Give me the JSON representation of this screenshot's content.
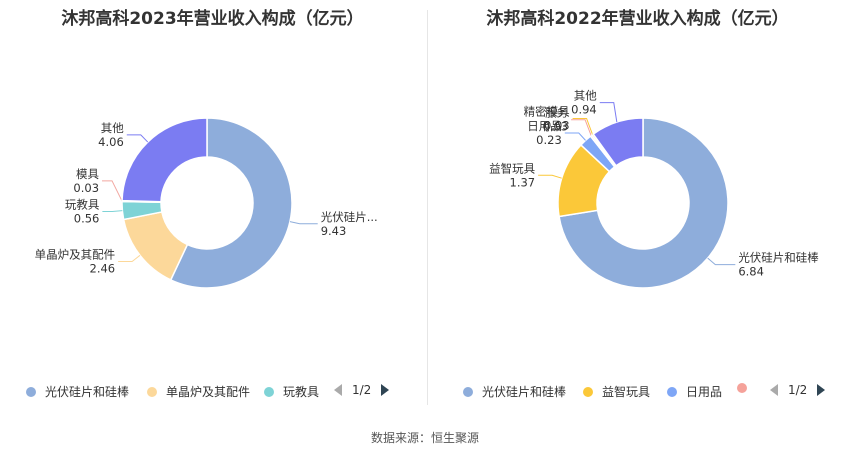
{
  "charts": [
    {
      "title": "沐邦高科2023年营业收入构成（亿元）",
      "pager": "1/2",
      "legend": [
        "光伏硅片和硅棒",
        "单晶炉及其配件",
        "玩教具"
      ]
    },
    {
      "title": "沐邦高科2022年营业收入构成（亿元）",
      "pager": "1/2",
      "legend": [
        "光伏硅片和硅棒",
        "益智玩具",
        "日用品",
        ""
      ]
    }
  ],
  "source": "数据来源：恒生聚源",
  "colors": {
    "光伏硅片和硅棒": "#8eaddb",
    "单晶炉及其配件": "#fcd89a",
    "玩教具": "#7ed3d6",
    "模具": "#f2a6a0",
    "其他": "#7b7cf2",
    "益智玩具": "#fbc839",
    "日用品": "#7ea6f6",
    "服务": "#f5a29a",
    "精密模具": "#fbc839"
  },
  "chart_data": [
    {
      "type": "pie",
      "title": "沐邦高科2023年营业收入构成（亿元）",
      "slices": [
        {
          "label": "光伏硅片...",
          "name": "光伏硅片和硅棒",
          "value": 9.43
        },
        {
          "label": "单晶炉及其配件",
          "name": "单晶炉及其配件",
          "value": 2.46
        },
        {
          "label": "玩教具",
          "name": "玩教具",
          "value": 0.56
        },
        {
          "label": "模具",
          "name": "模具",
          "value": 0.03
        },
        {
          "label": "其他",
          "name": "其他",
          "value": 4.06
        }
      ]
    },
    {
      "type": "pie",
      "title": "沐邦高科2022年营业收入构成（亿元）",
      "slices": [
        {
          "label": "光伏硅片和硅棒",
          "name": "光伏硅片和硅棒",
          "value": 6.84
        },
        {
          "label": "益智玩具",
          "name": "益智玩具",
          "value": 1.37
        },
        {
          "label": "日用品",
          "name": "日用品",
          "value": 0.23
        },
        {
          "label": "服务",
          "name": "服务",
          "value": 0.03
        },
        {
          "label": "精密模具",
          "name": "精密模具",
          "value": 0.03
        },
        {
          "label": "其他",
          "name": "其他",
          "value": 0.94
        }
      ]
    }
  ]
}
